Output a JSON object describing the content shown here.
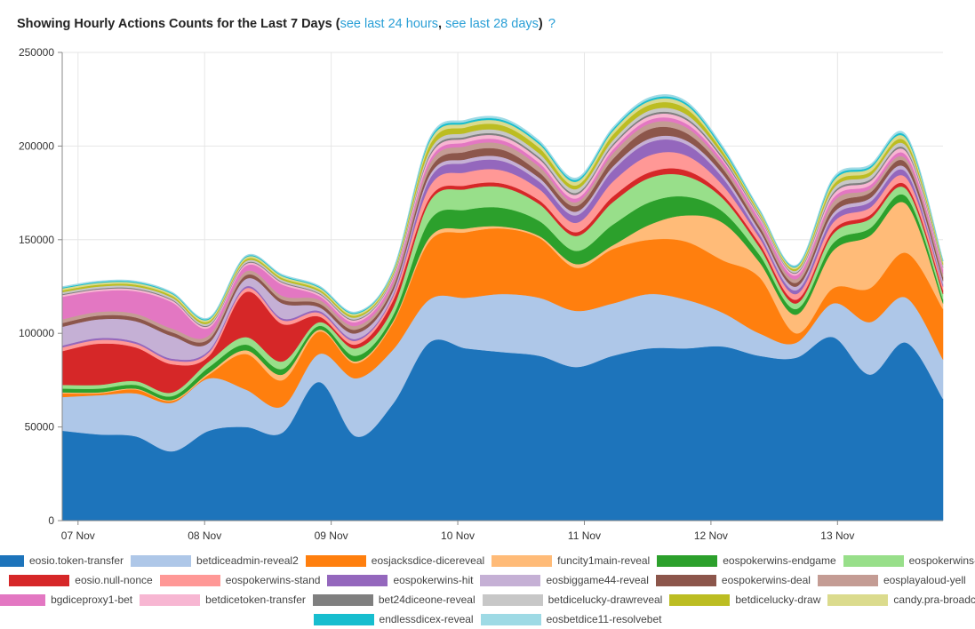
{
  "header": {
    "title_prefix": "Showing Hourly Actions Counts for the Last 7 Days (",
    "link_24h": "see last 24 hours",
    "separator": ", ",
    "link_28d": "see last 28 days",
    "title_suffix": ")",
    "help_icon": "?"
  },
  "chart_data": {
    "type": "area",
    "stacked": true,
    "x_ticks": [
      "07 Nov",
      "08 Nov",
      "09 Nov",
      "10 Nov",
      "11 Nov",
      "12 Nov",
      "13 Nov"
    ],
    "y_ticks": [
      "0",
      "50000",
      "100000",
      "150000",
      "200000",
      "250000"
    ],
    "ylim": [
      0,
      250000
    ],
    "x_start": "06 Nov 21:00",
    "x_end": "13 Nov 20:00",
    "grid": true,
    "legend_position": "bottom",
    "series": [
      {
        "name": "eosio.token-transfer",
        "color": "#1d74bb",
        "values": [
          48000,
          46000,
          45000,
          37000,
          48000,
          50000,
          47000,
          74000,
          45000,
          62000,
          95000,
          92000,
          90000,
          88000,
          82000,
          88000,
          92000,
          92000,
          93000,
          88000,
          87000,
          98000,
          78000,
          95000,
          65000
        ]
      },
      {
        "name": "betdiceadmin-reveal2",
        "color": "#aec7e8",
        "values": [
          18000,
          21000,
          23000,
          26000,
          28000,
          20000,
          14000,
          15000,
          31000,
          29000,
          23000,
          27000,
          31000,
          31000,
          30000,
          28000,
          29000,
          26000,
          18000,
          12000,
          8000,
          18000,
          28000,
          24000,
          21000
        ]
      },
      {
        "name": "eosjacksdice-dicereveal",
        "color": "#ff7f0e",
        "values": [
          2000,
          1000,
          2000,
          1000,
          2000,
          19000,
          14000,
          12000,
          8000,
          14000,
          31000,
          35000,
          35000,
          32000,
          23000,
          29000,
          29000,
          31000,
          28000,
          30000,
          5000,
          8000,
          18000,
          24000,
          27000
        ]
      },
      {
        "name": "funcity1main-reveal",
        "color": "#ffbb78",
        "values": [
          500,
          500,
          500,
          500,
          1000,
          2000,
          3000,
          1000,
          1000,
          1000,
          2000,
          2000,
          1000,
          1000,
          2000,
          2000,
          8000,
          14000,
          20000,
          8000,
          10000,
          20000,
          28000,
          26000,
          3000
        ]
      },
      {
        "name": "eospokerwins-endgame",
        "color": "#2ca02c",
        "values": [
          2000,
          2000,
          2000,
          2000,
          3000,
          3000,
          3000,
          2000,
          3000,
          3000,
          9000,
          10000,
          10000,
          8000,
          7000,
          11000,
          12000,
          10000,
          6000,
          4000,
          3000,
          4000,
          4000,
          4000,
          2000
        ]
      },
      {
        "name": "eospokerwins-initdeal",
        "color": "#98df8a",
        "values": [
          2000,
          2000,
          2000,
          2000,
          3000,
          4000,
          4000,
          2000,
          4000,
          4000,
          10000,
          11000,
          11000,
          9000,
          8000,
          12000,
          13000,
          11000,
          7000,
          4000,
          3000,
          5000,
          5000,
          4000,
          3000
        ]
      },
      {
        "name": "eosio.null-nonce",
        "color": "#d62728",
        "values": [
          18000,
          22000,
          18000,
          15000,
          3000,
          24000,
          20000,
          3000,
          2000,
          4000,
          2000,
          2000,
          2000,
          2000,
          2000,
          3000,
          3000,
          3000,
          2000,
          2000,
          2000,
          2000,
          2000,
          2000,
          2000
        ]
      },
      {
        "name": "eospokerwins-stand",
        "color": "#ff9896",
        "values": [
          2000,
          2000,
          2000,
          2000,
          2000,
          2000,
          2000,
          2000,
          2000,
          2000,
          6000,
          7000,
          7000,
          6000,
          5000,
          8000,
          9000,
          8000,
          5000,
          3000,
          3000,
          4000,
          4000,
          4000,
          2000
        ]
      },
      {
        "name": "eospokerwins-hit",
        "color": "#9467bd",
        "values": [
          1000,
          1000,
          1000,
          1000,
          1000,
          1000,
          1000,
          1000,
          1000,
          1000,
          4000,
          5000,
          5000,
          4000,
          4000,
          6000,
          7000,
          6000,
          4000,
          2000,
          2000,
          3000,
          3000,
          3000,
          1000
        ]
      },
      {
        "name": "eosbiggame44-reveal",
        "color": "#c5b0d5",
        "values": [
          10000,
          10000,
          11000,
          12000,
          4000,
          4000,
          8000,
          2000,
          3000,
          2000,
          2000,
          2000,
          2000,
          2000,
          2000,
          2000,
          2000,
          2000,
          2000,
          2000,
          2000,
          2000,
          2000,
          2000,
          2000
        ]
      },
      {
        "name": "eospokerwins-deal",
        "color": "#8c564b",
        "values": [
          2000,
          2000,
          2000,
          2000,
          2000,
          2000,
          2000,
          2000,
          2000,
          2000,
          3000,
          4000,
          4000,
          3000,
          3000,
          4000,
          5000,
          4000,
          3000,
          2000,
          2000,
          3000,
          3000,
          3000,
          2000
        ]
      },
      {
        "name": "eosplayaloud-yell",
        "color": "#c49c94",
        "values": [
          2000,
          2000,
          2000,
          2000,
          2000,
          2000,
          2000,
          2000,
          2000,
          2000,
          3000,
          3000,
          3000,
          3000,
          2000,
          3000,
          3000,
          3000,
          2000,
          2000,
          2000,
          3000,
          2000,
          2000,
          2000
        ]
      },
      {
        "name": "bgdiceproxy1-bet",
        "color": "#e377c2",
        "values": [
          12000,
          11000,
          12000,
          14000,
          4000,
          3000,
          6000,
          2000,
          2000,
          2000,
          2000,
          2000,
          2000,
          2000,
          2000,
          2000,
          2000,
          2000,
          2000,
          2000,
          2000,
          2000,
          2000,
          2000,
          2000
        ]
      },
      {
        "name": "betdicetoken-transfer",
        "color": "#f7b6d2",
        "values": [
          1000,
          1000,
          1000,
          1000,
          1000,
          1000,
          1000,
          1000,
          1000,
          1000,
          2000,
          2000,
          2000,
          2000,
          2000,
          2000,
          2000,
          2000,
          1000,
          1000,
          1000,
          2000,
          2000,
          2000,
          1000
        ]
      },
      {
        "name": "bet24diceone-reveal",
        "color": "#7f7f7f",
        "values": [
          500,
          500,
          500,
          500,
          500,
          500,
          500,
          500,
          500,
          500,
          1000,
          1000,
          1000,
          1000,
          1000,
          1000,
          1000,
          1000,
          1000,
          500,
          500,
          1000,
          1000,
          1000,
          500
        ]
      },
      {
        "name": "betdicelucky-drawreveal",
        "color": "#c7c7c7",
        "values": [
          1000,
          1000,
          1000,
          1000,
          1000,
          1000,
          1000,
          1000,
          1000,
          1000,
          2000,
          2000,
          2000,
          2000,
          2000,
          2000,
          2000,
          2000,
          1000,
          1000,
          1000,
          2000,
          2000,
          2000,
          1000
        ]
      },
      {
        "name": "betdicelucky-draw",
        "color": "#bcbd22",
        "values": [
          1000,
          1000,
          1000,
          1000,
          1000,
          1000,
          1000,
          1000,
          1000,
          1000,
          3000,
          3000,
          3000,
          3000,
          2000,
          3000,
          3000,
          3000,
          2000,
          1000,
          1000,
          2000,
          2000,
          2000,
          1000
        ]
      },
      {
        "name": "candy.pra-broadcast",
        "color": "#dbdb8d",
        "values": [
          1000,
          1000,
          1000,
          1000,
          1000,
          1000,
          1000,
          1000,
          1000,
          1000,
          2000,
          2000,
          2000,
          2000,
          2000,
          2000,
          2000,
          2000,
          1000,
          1000,
          1000,
          2000,
          2000,
          2000,
          1000
        ]
      },
      {
        "name": "endlessdicex-reveal",
        "color": "#17becf",
        "values": [
          500,
          500,
          500,
          500,
          500,
          500,
          500,
          500,
          500,
          500,
          1000,
          1000,
          1000,
          1000,
          1000,
          1000,
          1000,
          1000,
          1000,
          500,
          500,
          1000,
          1000,
          1000,
          500
        ]
      },
      {
        "name": "eosbetdice11-resolvebet",
        "color": "#9edae5",
        "values": [
          500,
          500,
          500,
          500,
          500,
          500,
          500,
          500,
          500,
          500,
          1000,
          1000,
          1000,
          1000,
          1000,
          1000,
          1000,
          1000,
          1000,
          500,
          500,
          1000,
          1000,
          1000,
          500
        ]
      }
    ]
  }
}
